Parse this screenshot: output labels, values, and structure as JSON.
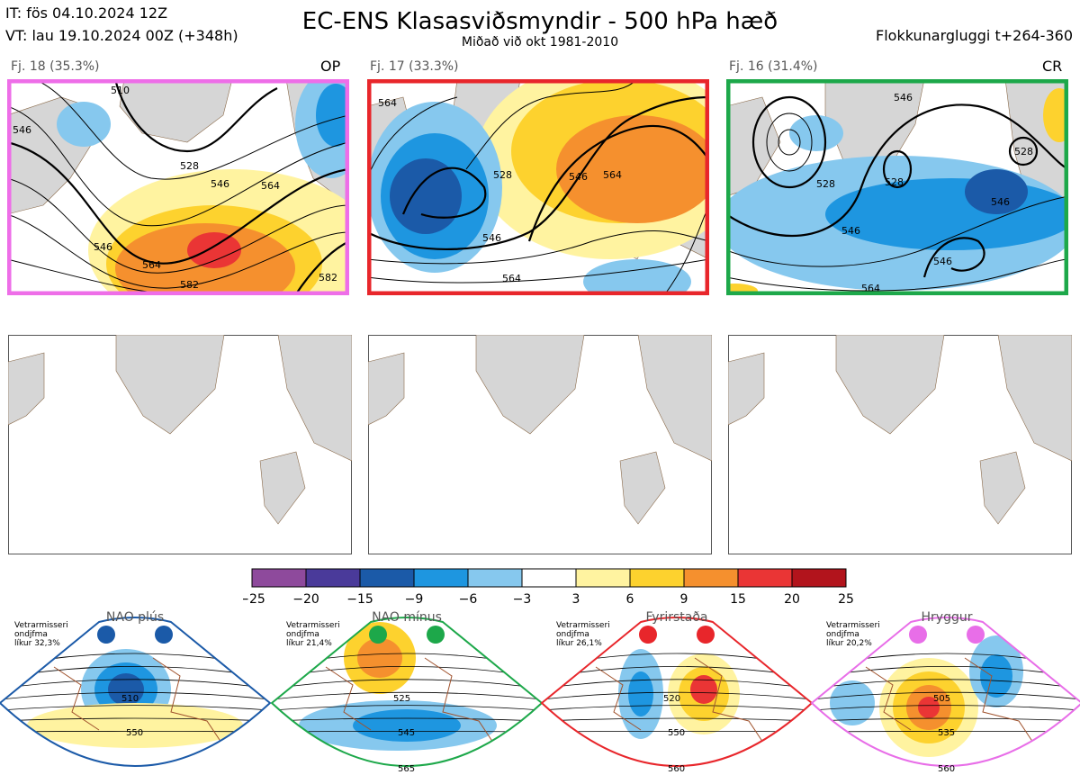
{
  "header": {
    "it": "IT: fös 04.10.2024 12Z",
    "vt": "VT: lau 19.10.2024 00Z  (+348h)",
    "title": "EC-ENS Klasasviðsmyndir - 500 hPa hæð",
    "subtitle": "Miðað við okt 1981-2010",
    "window": "Flokkunargluggi t+264-360"
  },
  "clusters": [
    {
      "label": "Fj. 18 (35.3%)",
      "tag": "OP",
      "border": "#ee6ee8"
    },
    {
      "label": "Fj. 17 (33.3%)",
      "tag": "",
      "border": "#e8262b"
    },
    {
      "label": "Fj. 16 (31.4%)",
      "tag": "CR",
      "border": "#1da84a"
    }
  ],
  "contour_labels": {
    "c1": [
      "510",
      "528",
      "546",
      "564",
      "546",
      "564",
      "582",
      "582",
      "546"
    ],
    "c2": [
      "546",
      "564",
      "546",
      "564",
      "564",
      "528"
    ],
    "c3": [
      "546",
      "528",
      "528",
      "546",
      "546",
      "564",
      "528",
      "546"
    ]
  },
  "chart_data": {
    "type": "heatmap",
    "title": "EC-ENS Klasasviðsmyndir - 500 hPa hæð",
    "subtitle": "Miðað við okt 1981-2010",
    "colorbar": {
      "ticks": [
        "−25",
        "−20",
        "−15",
        "−9",
        "−6",
        "−3",
        "3",
        "6",
        "9",
        "15",
        "20",
        "25"
      ],
      "colors": [
        "#8e4a9c",
        "#4a3a9a",
        "#1b5aa8",
        "#1e96e0",
        "#86c8ee",
        "#ffffff",
        "#fff3a0",
        "#fdd22e",
        "#f5902e",
        "#ea3535",
        "#b2141c"
      ]
    },
    "clusters": [
      {
        "name": "Fj. 18",
        "percent": 35.3,
        "tag": "OP"
      },
      {
        "name": "Fj. 17",
        "percent": 33.3,
        "tag": ""
      },
      {
        "name": "Fj. 16",
        "percent": 31.4,
        "tag": "CR"
      }
    ],
    "regimes": [
      {
        "name": "NAO plús",
        "likelihood": "32,3%",
        "color": "#1b5aa8",
        "contours": [
          "510",
          "550"
        ]
      },
      {
        "name": "NAO mínus",
        "likelihood": "21,4%",
        "color": "#1da84a",
        "contours": [
          "525",
          "545",
          "565"
        ]
      },
      {
        "name": "Fyrirstaða",
        "likelihood": "26,1%",
        "color": "#e8262b",
        "contours": [
          "520",
          "550",
          "560"
        ]
      },
      {
        "name": "Hryggur",
        "likelihood": "20,2%",
        "color": "#e86ee8",
        "contours": [
          "505",
          "535",
          "560"
        ]
      }
    ]
  },
  "regime_text": {
    "line1": "Vetrarmisseri",
    "line2": "ondjfma",
    "prefix": "líkur"
  }
}
